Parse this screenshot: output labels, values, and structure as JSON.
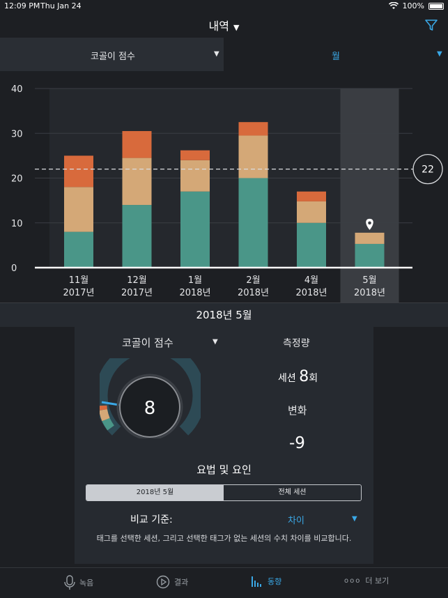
{
  "status": {
    "time": "12:09 PM",
    "date": "Thu Jan 24",
    "battery": "100%"
  },
  "header": {
    "title": "내역",
    "icons": [
      "chevron-down-icon",
      "filter-icon"
    ]
  },
  "dropdowns": {
    "left": {
      "label": "코골이 점수"
    },
    "right": {
      "label": "월"
    }
  },
  "chart_data": {
    "type": "bar",
    "stacked": true,
    "categories": [
      "11월 2017년",
      "12월 2017년",
      "1월 2018년",
      "2월 2018년",
      "4월 2018년",
      "5월 2018년"
    ],
    "tick_labels": [
      {
        "month": "11월",
        "year": "2017년"
      },
      {
        "month": "12월",
        "year": "2017년"
      },
      {
        "month": "1월",
        "year": "2018년"
      },
      {
        "month": "2월",
        "year": "2018년"
      },
      {
        "month": "4월",
        "year": "2018년"
      },
      {
        "month": "5월",
        "year": "2018년"
      }
    ],
    "series": [
      {
        "color": "#4a9688",
        "values": [
          8,
          14,
          17,
          20,
          10,
          5.3
        ]
      },
      {
        "color": "#d4a877",
        "values": [
          10,
          10.5,
          7,
          9.5,
          4.8,
          2.5
        ]
      },
      {
        "color": "#d86a3c",
        "values": [
          7,
          6,
          2.2,
          3,
          2.2,
          0
        ]
      }
    ],
    "ylim": [
      0,
      40
    ],
    "yticks": [
      0,
      10,
      20,
      30,
      40
    ],
    "average_line": 22,
    "average_label": "22",
    "selected_index": 5,
    "grid": true
  },
  "detail": {
    "month_title": "2018년 5월",
    "metric_label": "코골이 점수",
    "score": "8",
    "score_value": 8,
    "measure_title": "측정량",
    "sessions_prefix": "세션",
    "sessions_count": "8",
    "sessions_suffix": "회",
    "change_title": "변화",
    "change_value": "-9",
    "factors_title": "요법 및 요인",
    "segment": {
      "left": "2018년 5월",
      "right": "전체 세션",
      "selected": "left"
    },
    "compare_label": "비교 기준:",
    "compare_value": "차이",
    "description": "태그를 선택한 세션, 그리고 선택한 태그가 없는 세션의 수치 차이를 비교합니다."
  },
  "tabs": [
    {
      "label": "녹음",
      "icon": "microphone-icon",
      "active": false
    },
    {
      "label": "결과",
      "icon": "play-icon",
      "active": false
    },
    {
      "label": "동향",
      "icon": "bar-chart-icon",
      "active": true
    },
    {
      "label": "더 보기",
      "icon": "more-dots-icon",
      "active": false
    }
  ],
  "colors": {
    "accent": "#3aa8e6",
    "background": "#1d1f23",
    "panel": "#262a30"
  }
}
